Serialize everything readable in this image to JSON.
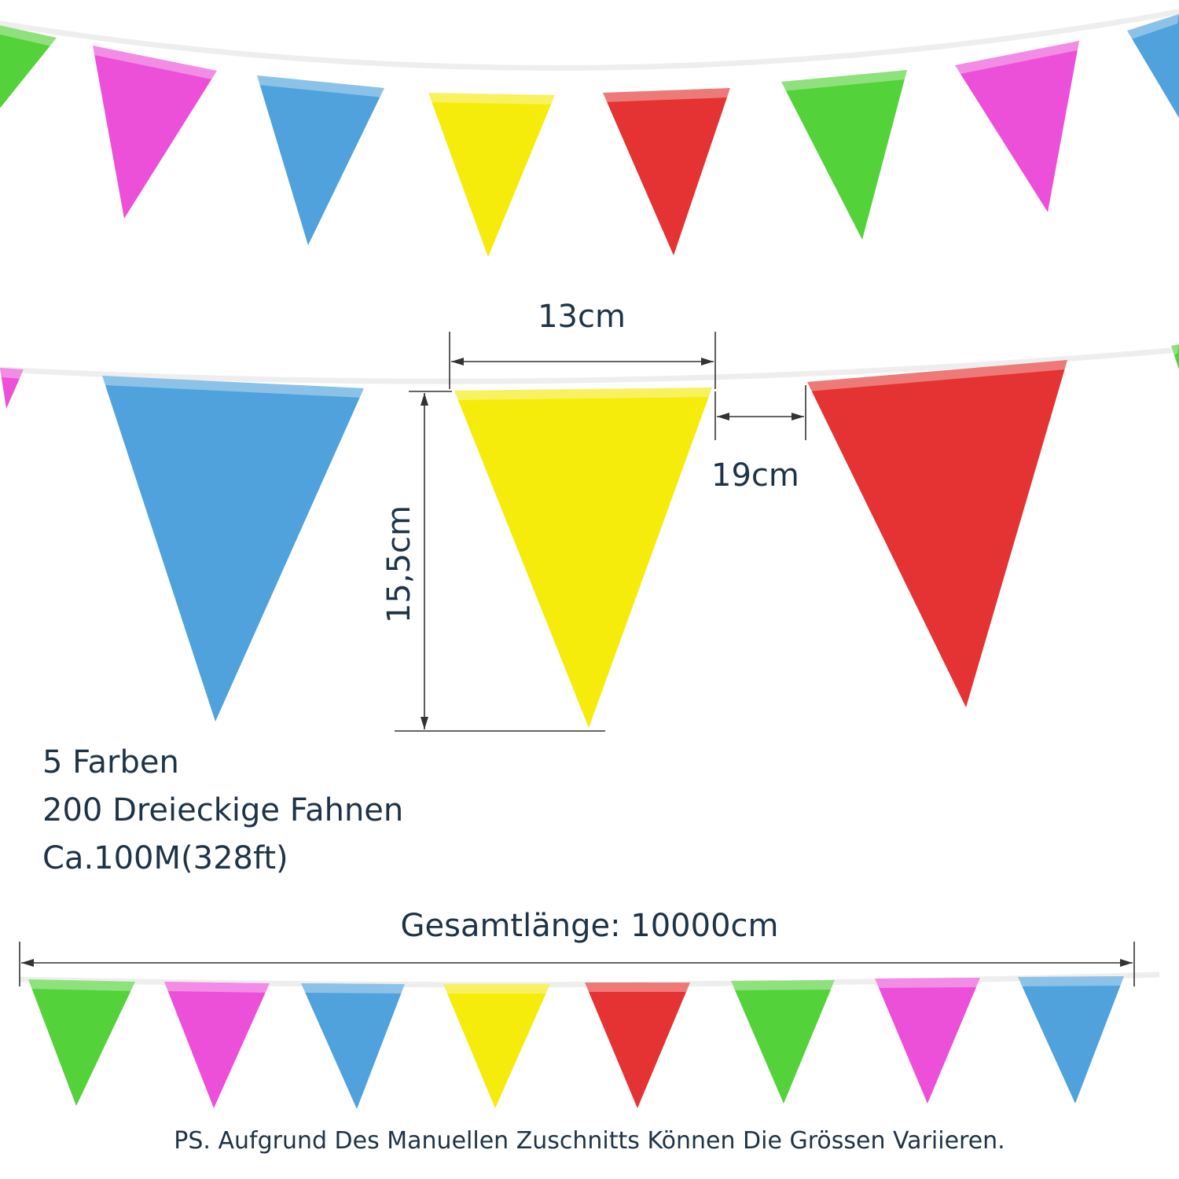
{
  "colors": {
    "green": "#53d23a",
    "pink": "#ec4fd8",
    "blue": "#4fa2dc",
    "yellow": "#f6ec0b",
    "red": "#e53232",
    "string": "#eeeeee",
    "text": "#1f3346",
    "dim_line": "#333333"
  },
  "top_row": {
    "flags": [
      "green",
      "pink",
      "blue",
      "yellow",
      "red",
      "green",
      "pink",
      "blue"
    ]
  },
  "middle_row": {
    "flags": [
      "pink",
      "blue",
      "yellow",
      "red",
      "green"
    ]
  },
  "bottom_row": {
    "flags": [
      "green",
      "pink",
      "blue",
      "yellow",
      "red",
      "green",
      "pink",
      "blue"
    ]
  },
  "dimensions": {
    "width_label": "13cm",
    "gap_label": "19cm",
    "height_label": "15,5cm",
    "total_label": "Gesamtlänge: 10000cm"
  },
  "info": {
    "colors_count": "5 Farben",
    "flag_count": "200 Dreieckige Fahnen",
    "length": "Ca.100M(328ft)"
  },
  "note": "PS. Aufgrund Des Manuellen Zuschnitts Können Die Grössen Variieren."
}
